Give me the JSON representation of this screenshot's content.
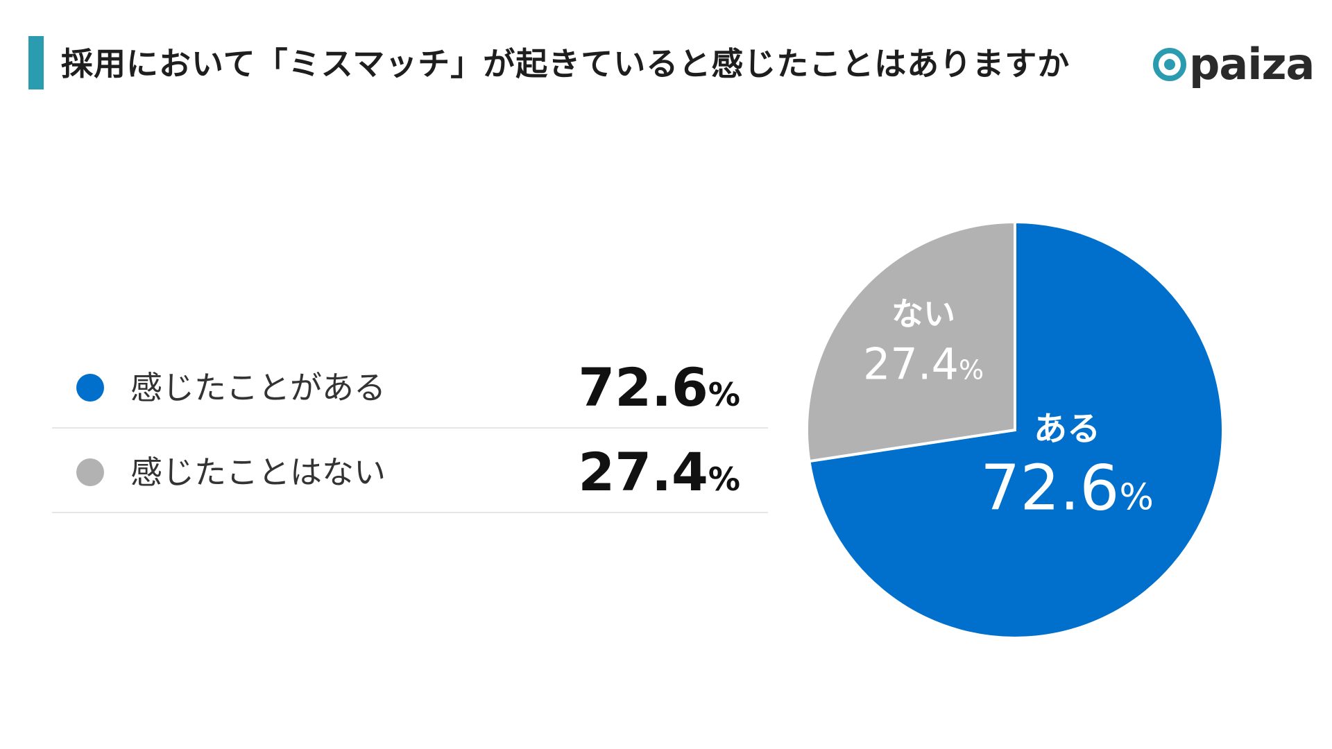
{
  "title": "採用において「ミスマッチ」が起きていると感じたことはありますか",
  "logo": {
    "text": "paiza"
  },
  "colors": {
    "title_accent": "#2b9bb0",
    "yes": "#0070cc",
    "no": "#b2b2b2"
  },
  "legend": [
    {
      "label": "感じたことがある",
      "value": "72.6",
      "unit": "%"
    },
    {
      "label": "感じたことはない",
      "value": "27.4",
      "unit": "%"
    }
  ],
  "chart_data": {
    "type": "pie",
    "title": "採用において「ミスマッチ」が起きていると感じたことはありますか",
    "slices": [
      {
        "label": "ある",
        "value": 72.6,
        "value_label": "72.6",
        "unit": "%",
        "color": "#0070cc"
      },
      {
        "label": "ない",
        "value": 27.4,
        "value_label": "27.4",
        "unit": "%",
        "color": "#b2b2b2"
      }
    ],
    "start": "12 o'clock",
    "direction": "clockwise"
  }
}
